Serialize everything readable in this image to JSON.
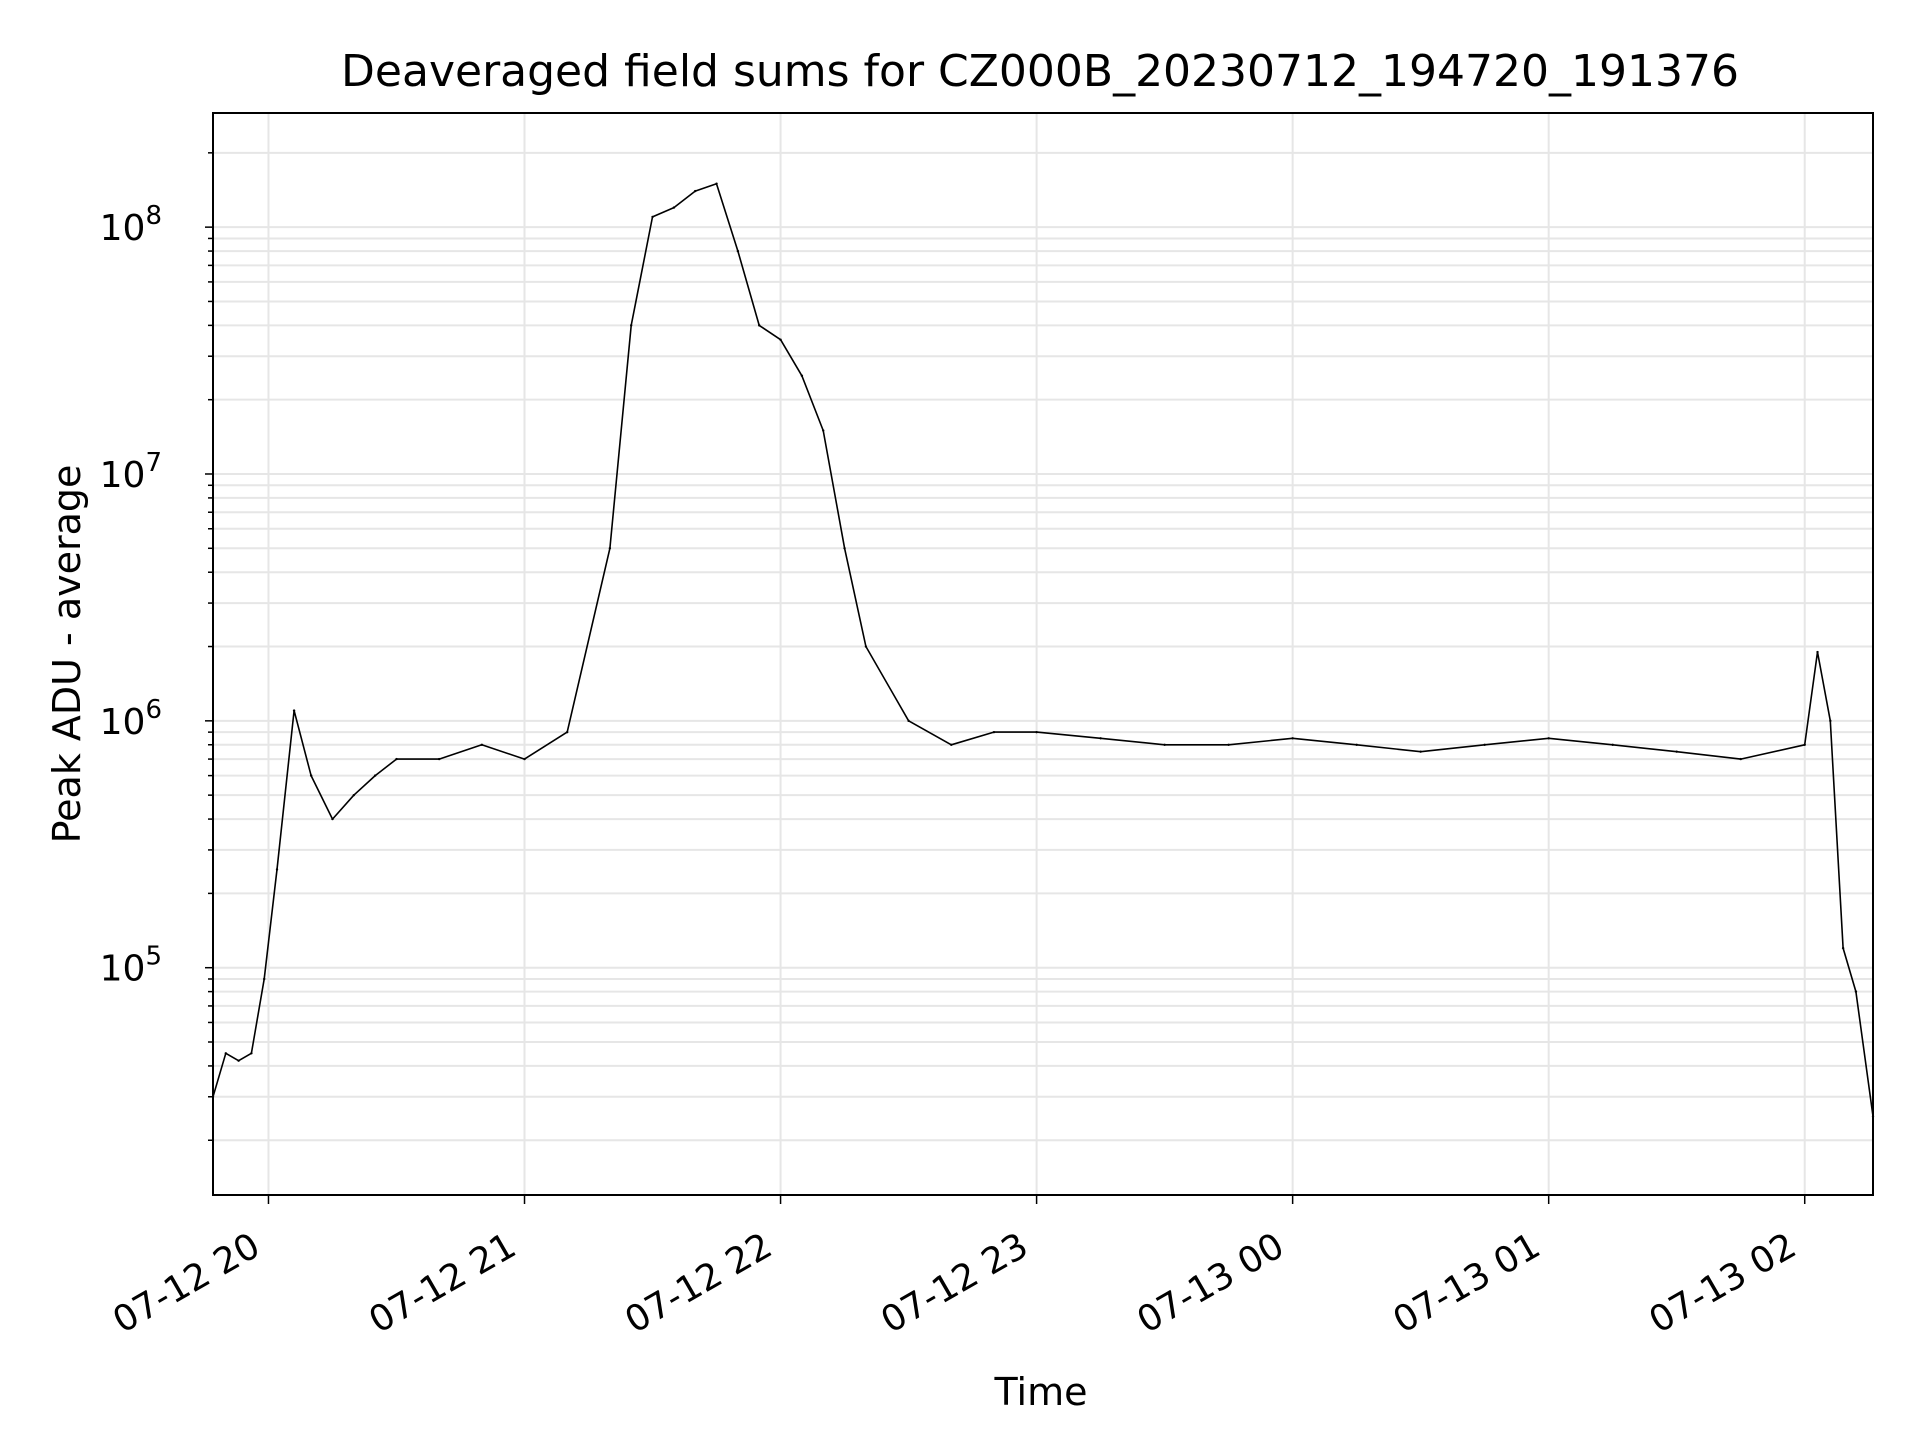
{
  "chart_data": {
    "type": "line",
    "title": "Deaveraged field sums for CZ000B_20230712_194720_191376",
    "xlabel": "Time",
    "ylabel": "Peak ADU - average",
    "x_scale": "time",
    "y_scale": "log",
    "xlim": [
      "07-12 19:47",
      "07-13 02:16"
    ],
    "ylim": [
      12000,
      290000000
    ],
    "grid": true,
    "x_ticks": [
      "07-12 20",
      "07-12 21",
      "07-12 22",
      "07-12 23",
      "07-13 00",
      "07-13 01",
      "07-13 02"
    ],
    "y_ticks": [
      {
        "base": "10",
        "exp": "5",
        "value": 100000
      },
      {
        "base": "10",
        "exp": "6",
        "value": 1000000
      },
      {
        "base": "10",
        "exp": "7",
        "value": 10000000
      },
      {
        "base": "10",
        "exp": "8",
        "value": 100000000
      }
    ],
    "line_color": "#000000",
    "grid_color": "#e6e6e6",
    "series": [
      {
        "x": [
          "07-12 19:47",
          "07-12 19:50",
          "07-12 19:53",
          "07-12 19:56",
          "07-12 19:59",
          "07-12 20:02",
          "07-12 20:06",
          "07-12 20:10",
          "07-12 20:15",
          "07-12 20:20",
          "07-12 20:25",
          "07-12 20:30",
          "07-12 20:40",
          "07-12 20:50",
          "07-12 21:00",
          "07-12 21:10",
          "07-12 21:20",
          "07-12 21:25",
          "07-12 21:30",
          "07-12 21:35",
          "07-12 21:40",
          "07-12 21:45",
          "07-12 21:50",
          "07-12 21:55",
          "07-12 22:00",
          "07-12 22:05",
          "07-12 22:10",
          "07-12 22:15",
          "07-12 22:20",
          "07-12 22:30",
          "07-12 22:40",
          "07-12 22:50",
          "07-12 23:00",
          "07-12 23:15",
          "07-12 23:30",
          "07-12 23:45",
          "07-13 00:00",
          "07-13 00:15",
          "07-13 00:30",
          "07-13 00:45",
          "07-13 01:00",
          "07-13 01:15",
          "07-13 01:30",
          "07-13 01:45",
          "07-13 02:00",
          "07-13 02:03",
          "07-13 02:06",
          "07-13 02:09",
          "07-13 02:12",
          "07-13 02:16"
        ],
        "y": [
          30000,
          45000,
          42000,
          45000,
          90000,
          250000,
          1100000,
          600000,
          400000,
          500000,
          600000,
          700000,
          700000,
          800000,
          700000,
          900000,
          5000000,
          40000000,
          110000000,
          120000000,
          140000000,
          150000000,
          80000000,
          40000000,
          35000000,
          25000000,
          15000000,
          5000000,
          2000000,
          1000000,
          800000,
          900000,
          900000,
          850000,
          800000,
          800000,
          850000,
          800000,
          750000,
          800000,
          850000,
          800000,
          750000,
          700000,
          800000,
          1900000,
          1000000,
          120000,
          80000,
          25000
        ]
      }
    ]
  }
}
